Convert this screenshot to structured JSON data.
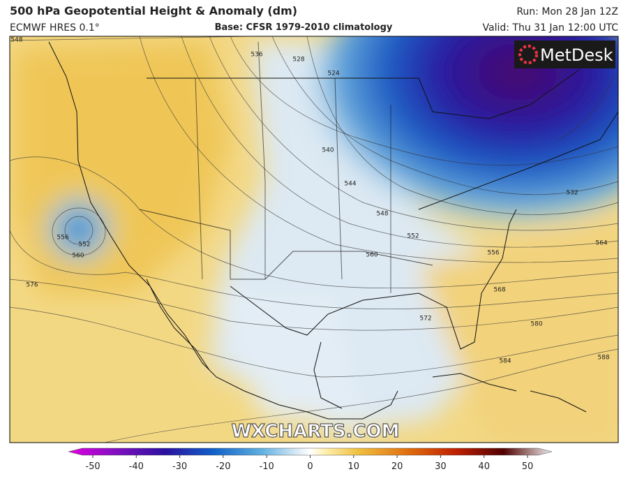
{
  "header": {
    "title": "500 hPa Geopotential Height & Anomaly (dm)",
    "model": "ECMWF HRES 0.1°",
    "base": "Base: CFSR 1979-2010 climatology",
    "run": "Run: Mon 28 Jan 12Z",
    "valid": "Valid: Thu 31 Jan 12:00 UTC"
  },
  "logo": "MetDesk",
  "watermark": "WXCHARTS.COM",
  "contour_labels": [
    548,
    536,
    528,
    524,
    540,
    544,
    548,
    552,
    556,
    552,
    560,
    560,
    576,
    564,
    532,
    556,
    568,
    572,
    580,
    584,
    588
  ],
  "colorbar": {
    "lim": [
      -50,
      50
    ],
    "ticks": [
      -50,
      -40,
      -30,
      -20,
      -10,
      0,
      10,
      20,
      30,
      40,
      50
    ]
  }
}
